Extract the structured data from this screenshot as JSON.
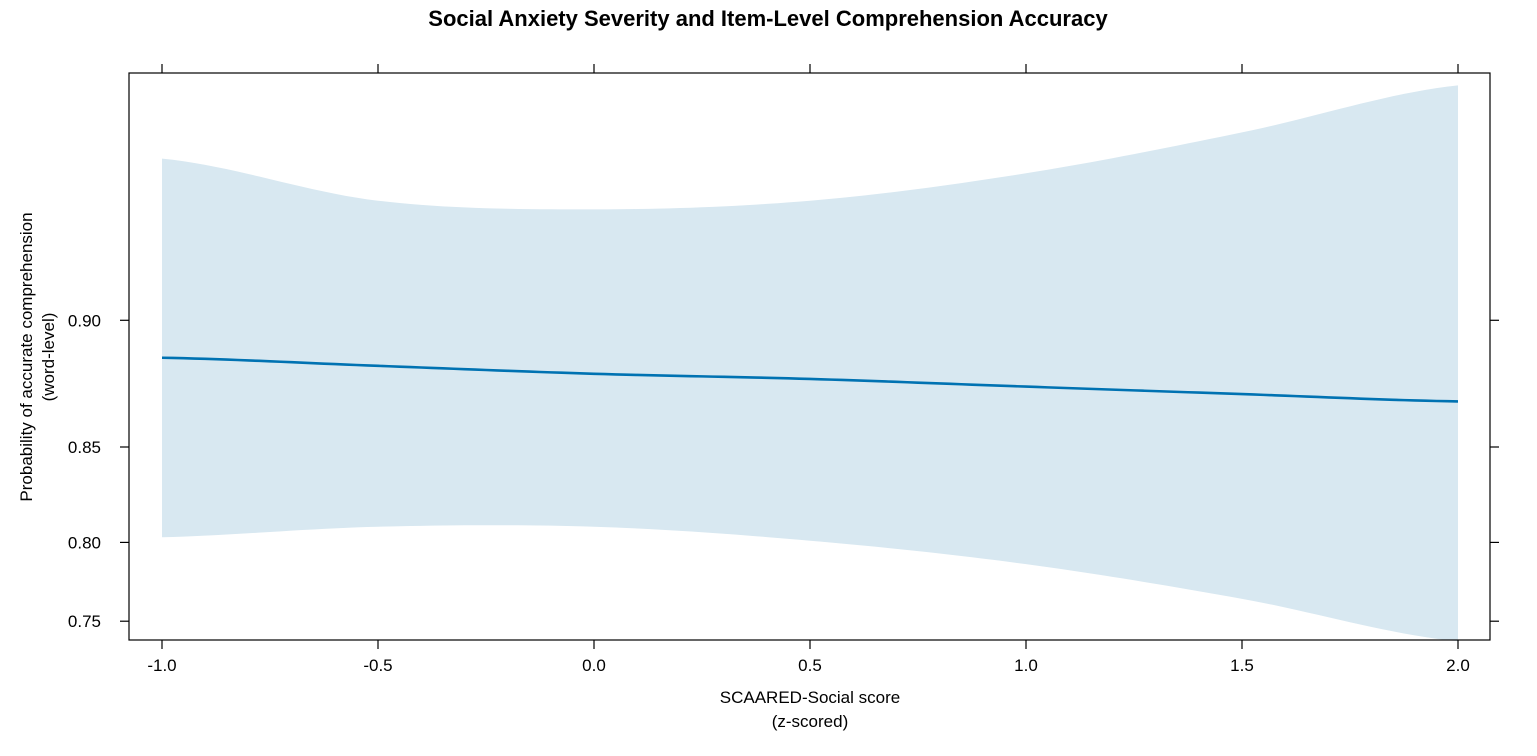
{
  "chart_data": {
    "type": "line",
    "title": "Social Anxiety Severity and Item-Level Comprehension Accuracy",
    "xlabel_line1": "SCAARED-Social score",
    "xlabel_line2": "(z-scored)",
    "ylabel_line1": "Probability of accurate comprehension",
    "ylabel_line2": "(word-level)",
    "xlim": [
      -1.0,
      2.0
    ],
    "ylim_logit": [
      1.03,
      3.1
    ],
    "y_scale": "logit",
    "x_ticks": [
      "-1.0",
      "-0.5",
      "0.0",
      "0.5",
      "1.0",
      "1.5",
      "2.0"
    ],
    "y_ticks": [
      "0.75",
      "0.80",
      "0.85",
      "0.90"
    ],
    "line_color": "#0072b2",
    "band_color": "#d8e8f1",
    "series": [
      {
        "x": [
          -1.0,
          -0.5,
          0.0,
          0.5,
          1.0,
          1.5,
          2.0
        ],
        "fit": [
          0.887,
          0.884,
          0.881,
          0.879,
          0.876,
          0.873,
          0.87
        ],
        "lower": [
          0.803,
          0.809,
          0.809,
          0.801,
          0.787,
          0.765,
          0.736
        ],
        "upper": [
          0.942,
          0.933,
          0.931,
          0.933,
          0.939,
          0.947,
          0.955
        ]
      }
    ]
  }
}
